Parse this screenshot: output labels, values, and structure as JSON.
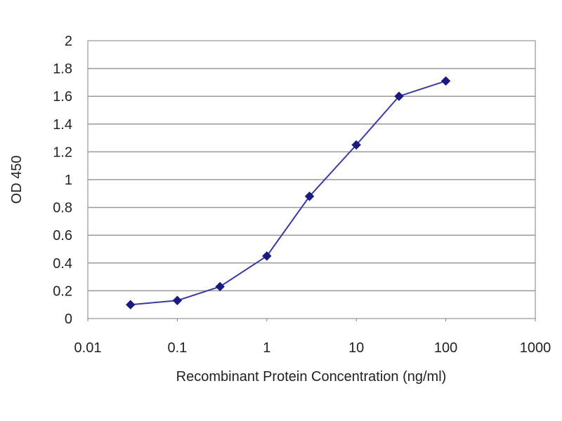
{
  "chart_data": {
    "type": "line",
    "title": "",
    "xlabel": "Recombinant Protein Concentration (ng/ml)",
    "ylabel": "OD 450",
    "x_scale": "log",
    "xlim": [
      0.01,
      1000
    ],
    "ylim": [
      0,
      2
    ],
    "x_ticks": [
      "0.01",
      "0.1",
      "1",
      "10",
      "100",
      "1000"
    ],
    "y_ticks": [
      "0",
      "0.2",
      "0.4",
      "0.6",
      "0.8",
      "1",
      "1.2",
      "1.4",
      "1.6",
      "1.8",
      "2"
    ],
    "grid": "horizontal",
    "legend": "none",
    "series": [
      {
        "x": [
          0.03,
          0.1,
          0.3,
          1,
          3,
          10,
          30,
          100
        ],
        "y": [
          0.1,
          0.13,
          0.23,
          0.45,
          0.88,
          1.25,
          1.6,
          1.71
        ],
        "color": "#3a3aa0",
        "marker_color": "#1a1a80"
      }
    ],
    "plot_background": "#ffffff",
    "grid_color": "#9a9a9a"
  }
}
